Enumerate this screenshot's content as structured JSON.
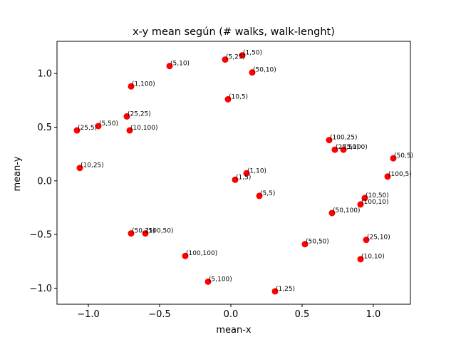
{
  "chart_data": {
    "type": "scatter",
    "title": "x-y mean según (# walks, walk-lenght)",
    "xlabel": "mean-x",
    "ylabel": "mean-y",
    "xlim": [
      -1.22,
      1.26
    ],
    "ylim": [
      -1.15,
      1.3
    ],
    "xticks": [
      -1.0,
      -0.5,
      0.0,
      0.5,
      1.0
    ],
    "xtick_labels": [
      "−1.0",
      "−0.5",
      "0.0",
      "0.5",
      "1.0"
    ],
    "yticks": [
      -1.0,
      -0.5,
      0.0,
      0.5,
      1.0
    ],
    "ytick_labels": [
      "−1.0",
      "−0.5",
      "0.0",
      "0.5",
      "1.0"
    ],
    "grid": false,
    "marker_color": "#ff0000",
    "points": [
      {
        "label": "(1,50)",
        "x": 0.08,
        "y": 1.17
      },
      {
        "label": "(5,25)",
        "x": -0.04,
        "y": 1.13
      },
      {
        "label": "(5,10)",
        "x": -0.43,
        "y": 1.07
      },
      {
        "label": "(50,10)",
        "x": 0.15,
        "y": 1.01
      },
      {
        "label": "(1,100)",
        "x": -0.7,
        "y": 0.88
      },
      {
        "label": "(10,5)",
        "x": -0.02,
        "y": 0.76
      },
      {
        "label": "(25,25)",
        "x": -0.73,
        "y": 0.6
      },
      {
        "label": "(5,50)",
        "x": -0.93,
        "y": 0.51
      },
      {
        "label": "(25,5)",
        "x": -1.08,
        "y": 0.47
      },
      {
        "label": "(10,100)",
        "x": -0.71,
        "y": 0.47
      },
      {
        "label": "(100,25)",
        "x": 0.69,
        "y": 0.38
      },
      {
        "label": "(25,50)",
        "x": 0.73,
        "y": 0.29
      },
      {
        "label": "(5,100)",
        "x": 0.79,
        "y": 0.29
      },
      {
        "label": "(50,5)",
        "x": 1.14,
        "y": 0.21
      },
      {
        "label": "(10,25)",
        "x": -1.06,
        "y": 0.12
      },
      {
        "label": "(1,10)",
        "x": 0.11,
        "y": 0.07
      },
      {
        "label": "(100,5)",
        "x": 1.1,
        "y": 0.04
      },
      {
        "label": "(1,5)",
        "x": 0.03,
        "y": 0.01
      },
      {
        "label": "(5,5)",
        "x": 0.2,
        "y": -0.14
      },
      {
        "label": "(10,50)",
        "x": 0.94,
        "y": -0.16
      },
      {
        "label": "(100,10)",
        "x": 0.91,
        "y": -0.22
      },
      {
        "label": "(50,100)",
        "x": 0.71,
        "y": -0.3
      },
      {
        "label": "(50,25)",
        "x": -0.7,
        "y": -0.49
      },
      {
        "label": "(100,50)",
        "x": -0.6,
        "y": -0.49
      },
      {
        "label": "(25,10)",
        "x": 0.95,
        "y": -0.55
      },
      {
        "label": "(50,50)",
        "x": 0.52,
        "y": -0.59
      },
      {
        "label": "(100,100)",
        "x": -0.32,
        "y": -0.7
      },
      {
        "label": "(10,10)",
        "x": 0.91,
        "y": -0.73
      },
      {
        "label": "(5,100)",
        "x": -0.16,
        "y": -0.94
      },
      {
        "label": "(1,25)",
        "x": 0.31,
        "y": -1.03
      }
    ]
  }
}
